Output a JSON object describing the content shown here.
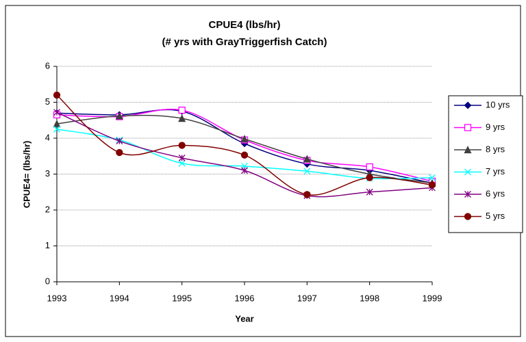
{
  "chart_data": {
    "type": "line",
    "title": "CPUE4 (lbs/hr)",
    "subtitle": "(# yrs with GrayTriggerfish Catch)",
    "x_label": "Year",
    "y_label": "CPUE4= (lbs/hr)",
    "x": [
      1993,
      1994,
      1995,
      1996,
      1997,
      1998,
      1999
    ],
    "xlim": [
      1993,
      1999
    ],
    "xticks": [
      1993,
      1994,
      1995,
      1996,
      1997,
      1998,
      1999
    ],
    "ylim": [
      0,
      6
    ],
    "yticks": [
      0,
      1,
      2,
      3,
      4,
      5,
      6
    ],
    "grid": true,
    "smooth": true,
    "legend": "right",
    "series": [
      {
        "name": "10 yrs",
        "color": "#000080",
        "marker": "diamond",
        "values": [
          4.7,
          4.65,
          4.75,
          3.85,
          3.28,
          3.1,
          2.75
        ]
      },
      {
        "name": "9 yrs",
        "color": "#ff00ff",
        "marker": "square",
        "values": [
          4.65,
          4.6,
          4.78,
          3.95,
          3.38,
          3.2,
          2.8
        ]
      },
      {
        "name": "8 yrs",
        "color": "#404040",
        "marker": "triangle",
        "values": [
          4.4,
          4.62,
          4.55,
          3.98,
          3.42,
          3.0,
          2.75
        ]
      },
      {
        "name": "7 yrs",
        "color": "#00ffff",
        "marker": "x",
        "values": [
          4.25,
          3.95,
          3.3,
          3.22,
          3.08,
          2.88,
          2.9
        ]
      },
      {
        "name": "6 yrs",
        "color": "#800080",
        "marker": "star",
        "values": [
          4.72,
          3.92,
          3.45,
          3.1,
          2.4,
          2.5,
          2.62
        ]
      },
      {
        "name": "5 yrs",
        "color": "#800000",
        "marker": "circle",
        "values": [
          5.2,
          3.6,
          3.8,
          3.53,
          2.43,
          2.9,
          2.7
        ]
      }
    ]
  }
}
